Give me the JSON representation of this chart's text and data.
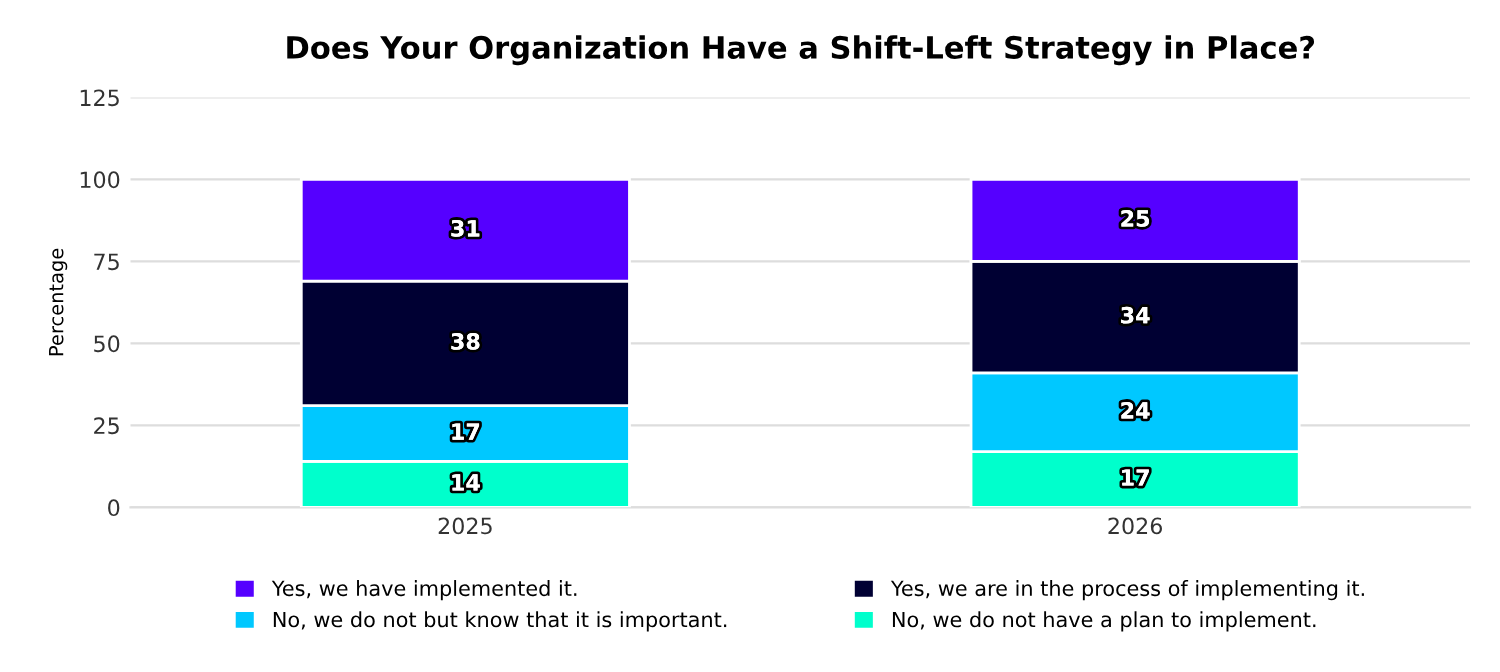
{
  "chart_data": {
    "type": "bar",
    "title": "Does Your Organization Have a Shift-Left Strategy in Place?",
    "ylabel": "Percentage",
    "categories": [
      "2025",
      "2026"
    ],
    "stacked": true,
    "data_labels": true,
    "grid": "y",
    "legend": "bottom",
    "ylim": [
      0,
      125
    ],
    "yticks": [
      0,
      25,
      50,
      75,
      100,
      125
    ],
    "series": [
      {
        "name": "No, we do not have a plan to implement.",
        "color": "#00ffcc",
        "values": [
          14,
          17
        ]
      },
      {
        "name": "No, we do not but know that it is important.",
        "color": "#00c8ff",
        "values": [
          17,
          24
        ]
      },
      {
        "name": "Yes, we are in the process of implementing it.",
        "color": "#000033",
        "values": [
          38,
          34
        ]
      },
      {
        "name": "Yes, we have implemented it.",
        "color": "#5500ff",
        "values": [
          31,
          25
        ]
      }
    ]
  }
}
